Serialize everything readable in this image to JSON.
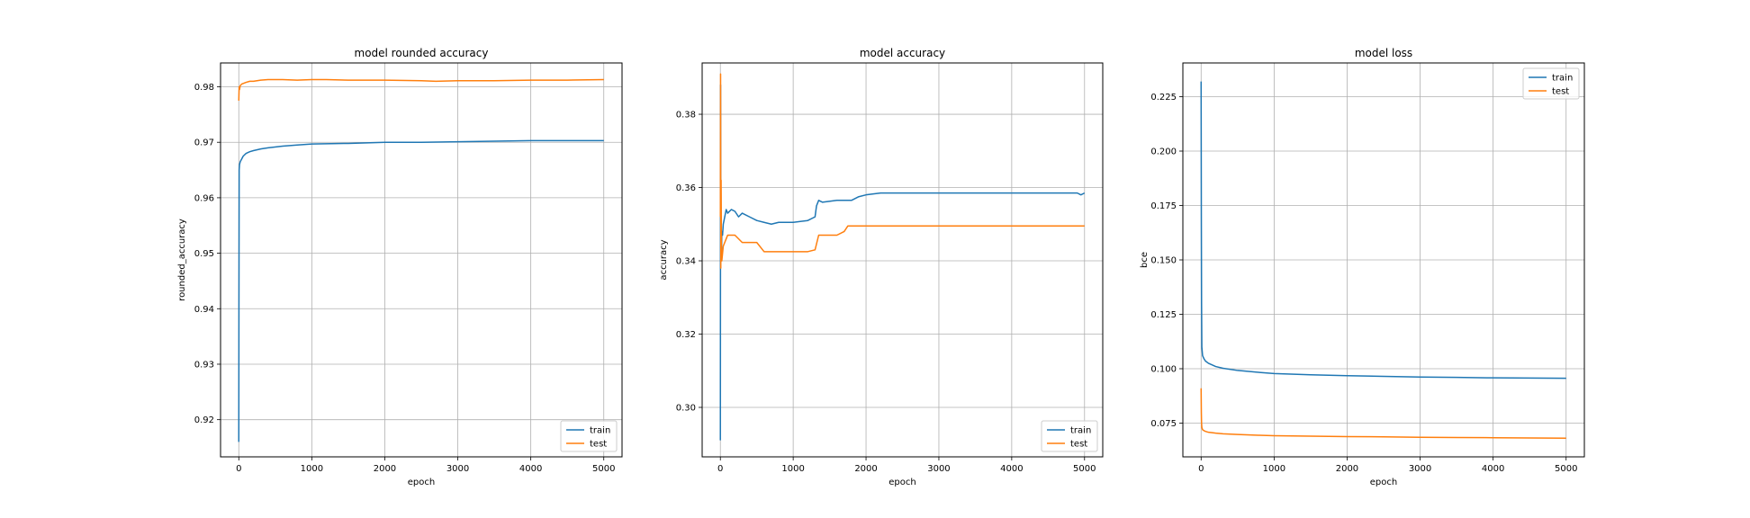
{
  "colors": {
    "train": "#1f77b4",
    "test": "#ff7f0e"
  },
  "chart_data": [
    {
      "type": "line",
      "title": "model rounded accuracy",
      "xlabel": "epoch",
      "ylabel": "rounded_accuracy",
      "xlim": [
        -250,
        5250
      ],
      "ylim": [
        0.9133,
        0.9843
      ],
      "xticks": [
        0,
        1000,
        2000,
        3000,
        4000,
        5000
      ],
      "yticks": [
        0.92,
        0.93,
        0.94,
        0.95,
        0.96,
        0.97,
        0.98
      ],
      "ytick_format": 2,
      "grid": true,
      "legend_loc": "lower-right",
      "series": [
        {
          "name": "train",
          "color_key": "train",
          "x": [
            0,
            2,
            5,
            10,
            20,
            40,
            60,
            100,
            150,
            200,
            300,
            400,
            600,
            800,
            1000,
            1500,
            2000,
            2500,
            3000,
            3500,
            4000,
            4500,
            5000
          ],
          "y": [
            0.916,
            0.94,
            0.965,
            0.966,
            0.9665,
            0.967,
            0.9675,
            0.968,
            0.9683,
            0.9685,
            0.9688,
            0.969,
            0.9693,
            0.9695,
            0.9697,
            0.9698,
            0.97,
            0.97,
            0.9701,
            0.9702,
            0.9703,
            0.9703,
            0.9703
          ]
        },
        {
          "name": "test",
          "color_key": "test",
          "x": [
            0,
            5,
            10,
            20,
            40,
            60,
            100,
            150,
            200,
            300,
            400,
            600,
            800,
            1000,
            1200,
            1500,
            2000,
            2500,
            2700,
            3000,
            3500,
            4000,
            4500,
            5000
          ],
          "y": [
            0.9775,
            0.98,
            0.9795,
            0.9802,
            0.9805,
            0.9806,
            0.9808,
            0.981,
            0.981,
            0.9812,
            0.9813,
            0.9813,
            0.9812,
            0.9813,
            0.9813,
            0.9812,
            0.9812,
            0.9811,
            0.981,
            0.9811,
            0.9811,
            0.9812,
            0.9812,
            0.9813
          ]
        }
      ]
    },
    {
      "type": "line",
      "title": "model accuracy",
      "xlabel": "epoch",
      "ylabel": "accuracy",
      "xlim": [
        -250,
        5250
      ],
      "ylim": [
        0.2865,
        0.394
      ],
      "xticks": [
        0,
        1000,
        2000,
        3000,
        4000,
        5000
      ],
      "yticks": [
        0.3,
        0.32,
        0.34,
        0.36,
        0.38
      ],
      "ytick_format": 2,
      "grid": true,
      "legend_loc": "lower-right",
      "series": [
        {
          "name": "train",
          "color_key": "train",
          "x": [
            0,
            3,
            6,
            10,
            15,
            20,
            30,
            40,
            60,
            80,
            100,
            150,
            200,
            250,
            300,
            400,
            500,
            600,
            700,
            800,
            1000,
            1200,
            1300,
            1320,
            1350,
            1400,
            1600,
            1800,
            1900,
            2000,
            2200,
            2500,
            2700,
            3000,
            4000,
            4900,
            4950,
            5000
          ],
          "y": [
            0.291,
            0.388,
            0.345,
            0.352,
            0.34,
            0.348,
            0.347,
            0.35,
            0.352,
            0.354,
            0.353,
            0.354,
            0.3535,
            0.352,
            0.353,
            0.352,
            0.351,
            0.3505,
            0.35,
            0.3505,
            0.3505,
            0.351,
            0.352,
            0.355,
            0.3565,
            0.356,
            0.3565,
            0.3565,
            0.3575,
            0.358,
            0.3585,
            0.3585,
            0.3585,
            0.3585,
            0.3585,
            0.3585,
            0.358,
            0.3585
          ]
        },
        {
          "name": "test",
          "color_key": "test",
          "x": [
            0,
            3,
            6,
            10,
            15,
            20,
            30,
            40,
            60,
            80,
            100,
            150,
            200,
            300,
            400,
            500,
            600,
            800,
            1000,
            1200,
            1300,
            1350,
            1400,
            1500,
            1600,
            1700,
            1750,
            1800,
            2000,
            3000,
            4000,
            5000
          ],
          "y": [
            0.352,
            0.391,
            0.338,
            0.362,
            0.342,
            0.34,
            0.342,
            0.344,
            0.345,
            0.346,
            0.347,
            0.347,
            0.347,
            0.345,
            0.345,
            0.345,
            0.3425,
            0.3425,
            0.3425,
            0.3425,
            0.343,
            0.347,
            0.347,
            0.347,
            0.347,
            0.348,
            0.3495,
            0.3495,
            0.3495,
            0.3495,
            0.3495,
            0.3495
          ]
        }
      ]
    },
    {
      "type": "line",
      "title": "model loss",
      "xlabel": "epoch",
      "ylabel": "bce",
      "xlim": [
        -250,
        5250
      ],
      "ylim": [
        0.0595,
        0.2405
      ],
      "xticks": [
        0,
        1000,
        2000,
        3000,
        4000,
        5000
      ],
      "yticks": [
        0.075,
        0.1,
        0.125,
        0.15,
        0.175,
        0.2,
        0.225
      ],
      "ytick_format": 3,
      "grid": true,
      "legend_loc": "upper-right",
      "series": [
        {
          "name": "train",
          "color_key": "train",
          "x": [
            0,
            3,
            6,
            10,
            20,
            40,
            60,
            100,
            200,
            300,
            500,
            800,
            1000,
            1500,
            2000,
            2500,
            3000,
            3500,
            4000,
            4500,
            5000
          ],
          "y": [
            0.232,
            0.17,
            0.13,
            0.11,
            0.106,
            0.1045,
            0.1035,
            0.1025,
            0.101,
            0.1002,
            0.0992,
            0.0983,
            0.0978,
            0.0972,
            0.0968,
            0.0965,
            0.0962,
            0.096,
            0.0958,
            0.0957,
            0.0956
          ]
        },
        {
          "name": "test",
          "color_key": "test",
          "x": [
            0,
            3,
            6,
            10,
            20,
            40,
            60,
            100,
            200,
            300,
            500,
            800,
            1000,
            1500,
            2000,
            2500,
            3000,
            3500,
            4000,
            4500,
            5000
          ],
          "y": [
            0.091,
            0.08,
            0.075,
            0.073,
            0.072,
            0.0715,
            0.0712,
            0.0708,
            0.0704,
            0.0701,
            0.0698,
            0.0694,
            0.0692,
            0.069,
            0.0688,
            0.0687,
            0.0685,
            0.0684,
            0.0683,
            0.0682,
            0.0681
          ]
        }
      ]
    }
  ]
}
